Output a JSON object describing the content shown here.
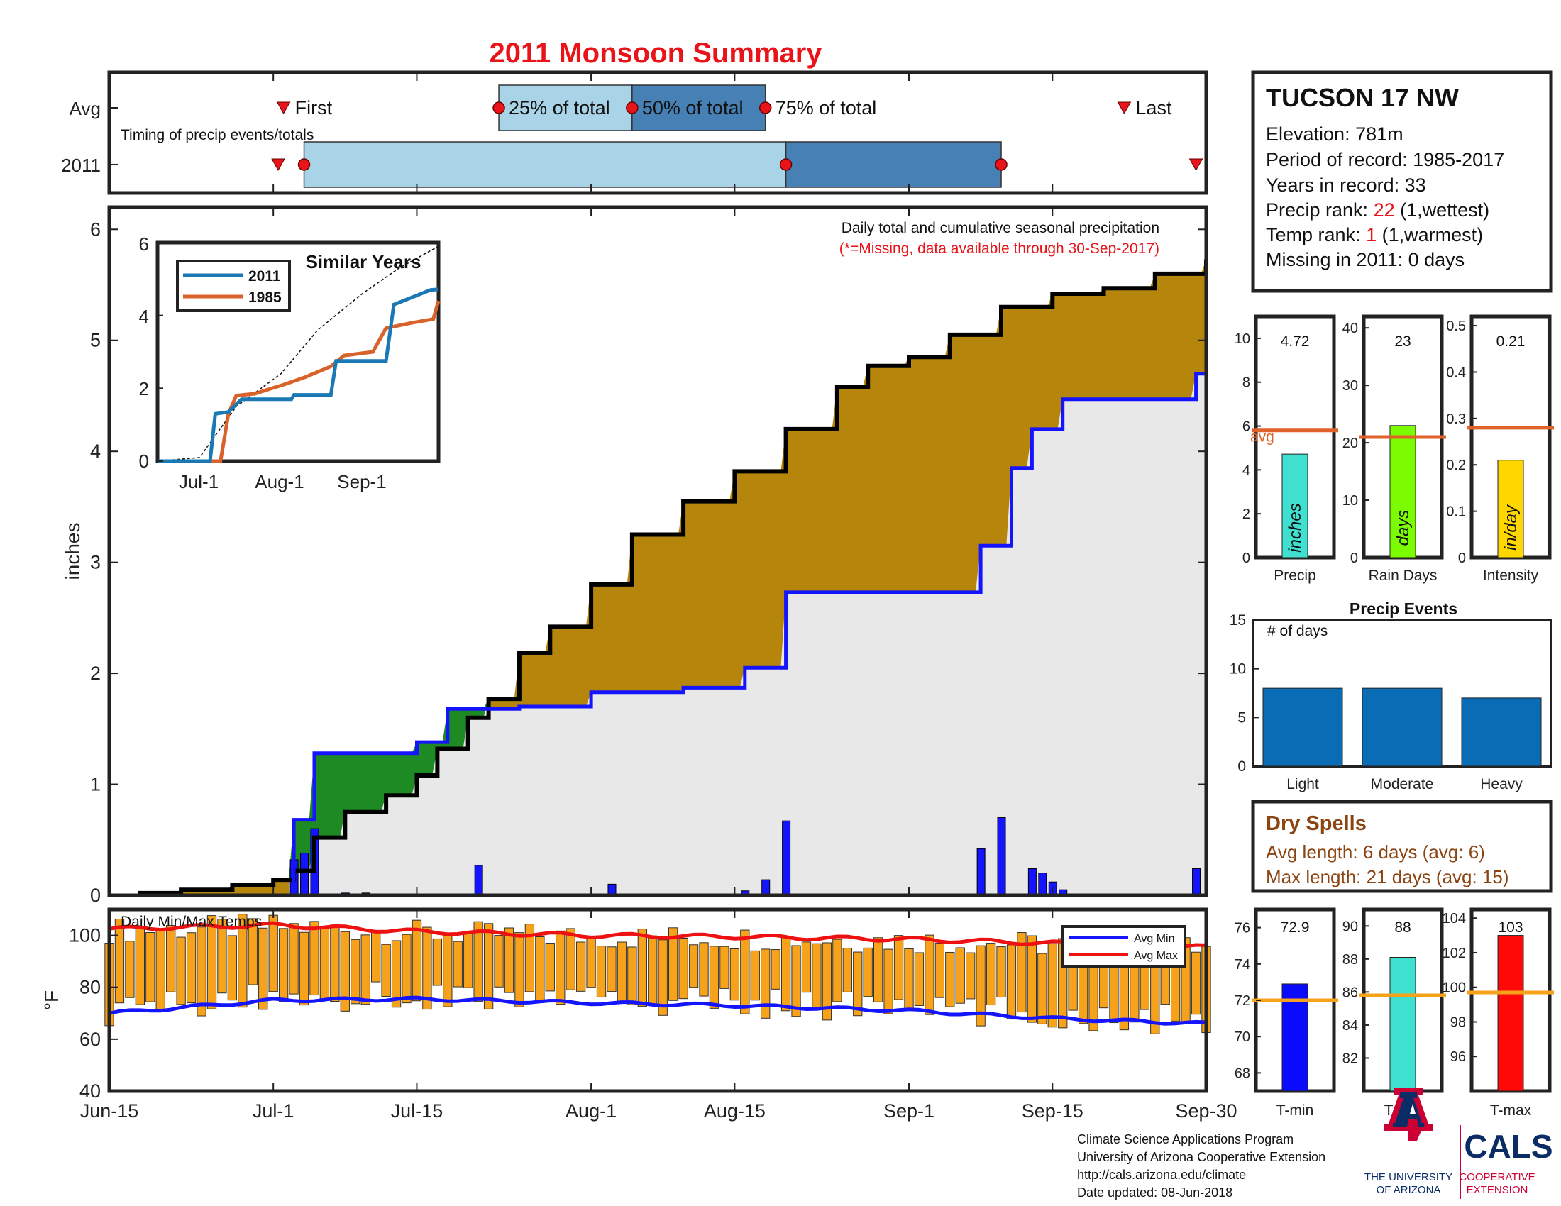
{
  "title": "2011 Monsoon Summary",
  "colors": {
    "title": "#e8141a",
    "light_blue": "#a9d3e6",
    "mid_blue": "#4680b5",
    "cum_2011": "#000000",
    "cum_avg": "#1414ff",
    "above_fill": "#b5860b",
    "below_fill": "#1e8a24",
    "base_fill": "#e8e8e8",
    "daily_bar": "#1414ff",
    "temp_bar": "#f7a21b",
    "avg_min": "#1414ff",
    "avg_max": "#ee1111",
    "similar_2011": "#1a79b5",
    "similar_1985": "#d9622b",
    "precip_bar": "#40e0d0",
    "raindays_bar": "#7cfc00",
    "intensity_bar": "#ffd700",
    "events_bar": "#0a6cb5",
    "avg_line": "#e0622a",
    "temp_avg_line": "#f7a21b",
    "tmin_bar": "#0a0aff",
    "tavg_bar": "#40e0d0",
    "tmax_bar": "#ff0808",
    "dry_spells": "#8b4513",
    "red_text": "#e8141a",
    "ua_blue": "#0c2c66",
    "ua_red": "#cc0033"
  },
  "timing": {
    "row_labels": [
      "Avg",
      "2011"
    ],
    "note": "Timing of precip events/totals",
    "avg_labels": {
      "first": "First",
      "q25": "25% of total",
      "q50": "50% of total",
      "q75": "75% of total",
      "last": "Last"
    }
  },
  "station": {
    "name": "TUCSON 17 NW",
    "elevation": "Elevation: 781m",
    "period": "Period of record: 1985-2017",
    "years": "Years in record: 33",
    "precip_rank_label": "Precip rank: ",
    "precip_rank_value": "22",
    "precip_rank_suffix": " (1,wettest)",
    "temp_rank_label": "Temp rank: ",
    "temp_rank_value": "1",
    "temp_rank_suffix": " (1,warmest)",
    "missing": "Missing in 2011: 0 days"
  },
  "main_chart": {
    "ylabel": "inches",
    "note_line1": "Daily total and cumulative seasonal precipitation",
    "note_line2": "(*=Missing, data available through 30-Sep-2017)"
  },
  "similar_years": {
    "title": "Similar Years",
    "legend": [
      "2011",
      "1985"
    ],
    "xticks": [
      "Jul-1",
      "Aug-1",
      "Sep-1"
    ],
    "yticks": [
      "0",
      "2",
      "4",
      "6"
    ]
  },
  "temps_chart": {
    "label": "Daily Min/Max Temps",
    "ylabel": "°F",
    "legend": [
      "Avg Min",
      "Avg Max"
    ]
  },
  "x_ticks": [
    "Jun-15",
    "Jul-1",
    "Jul-15",
    "Aug-1",
    "Aug-15",
    "Sep-1",
    "Sep-15",
    "Sep-30"
  ],
  "small_bars": [
    {
      "xlabel": "Precip",
      "value": 4.72,
      "value_text": "4.72",
      "avg": 5.8,
      "unit": "inches",
      "avg_label": "avg",
      "yticks": [
        "0",
        "2",
        "4",
        "6",
        "8",
        "10"
      ]
    },
    {
      "xlabel": "Rain Days",
      "value": 23,
      "value_text": "23",
      "avg": 21,
      "unit": "days",
      "yticks": [
        "0",
        "10",
        "20",
        "30",
        "40"
      ]
    },
    {
      "xlabel": "Intensity",
      "value": 0.21,
      "value_text": "0.21",
      "avg": 0.28,
      "unit": "in/day",
      "yticks": [
        "0",
        "0.1",
        "0.2",
        "0.3",
        "0.4",
        "0.5"
      ]
    }
  ],
  "precip_events": {
    "title": "Precip Events",
    "ylabel": "# of days",
    "categories": [
      "Light",
      "Moderate",
      "Heavy"
    ],
    "values": [
      8,
      8,
      7
    ],
    "yticks": [
      "0",
      "5",
      "10",
      "15"
    ]
  },
  "dry_spells": {
    "title": "Dry Spells",
    "avg_length": "Avg length: 6 days (avg: 6)",
    "max_length": "Max length: 21 days (avg: 15)"
  },
  "temp_bars": [
    {
      "xlabel": "T-min",
      "value": 72.9,
      "value_text": "72.9",
      "avg": 72.0,
      "yticks": [
        "68",
        "70",
        "72",
        "74",
        "76"
      ]
    },
    {
      "xlabel": "T-avg",
      "value": 88.1,
      "value_text": "88",
      "avg": 85.8,
      "yticks": [
        "82",
        "84",
        "86",
        "88",
        "90"
      ]
    },
    {
      "xlabel": "T-max",
      "value": 103.0,
      "value_text": "103",
      "avg": 99.7,
      "yticks": [
        "96",
        "98",
        "100",
        "102",
        "104"
      ]
    }
  ],
  "footer": {
    "lines": [
      "Climate Science Applications Program",
      "University of Arizona Cooperative Extension",
      "http://cals.arizona.edu/climate",
      " Date updated: 08-Jun-2018"
    ],
    "ua_line1": "THE UNIVERSITY",
    "ua_line2": "OF ARIZONA",
    "cals": "CALS",
    "cals_sub1": "COOPERATIVE",
    "cals_sub2": "EXTENSION"
  },
  "chart_data": [
    {
      "type": "bar",
      "name": "Timing of precip events/totals",
      "series": [
        {
          "name": "Avg",
          "values": {
            "first": "Jul-2",
            "q25": "Jul-23",
            "q50": "Aug-5",
            "q75": "Aug-18",
            "last": "Sep-22"
          }
        },
        {
          "name": "2011",
          "values": {
            "first": "Jul-3",
            "q25": "Jul-4",
            "q50": "Aug-20",
            "q75": "Sep-10",
            "last": "Sep-29"
          }
        }
      ]
    },
    {
      "type": "area",
      "title": "Daily total and cumulative seasonal precipitation",
      "ylabel": "inches",
      "ylim": [
        0,
        6.2
      ],
      "x_range": [
        "Jun-15",
        "Sep-30"
      ],
      "series": [
        {
          "name": "2011 cumulative",
          "x": [
            "Jun-18",
            "Jun-22",
            "Jun-27",
            "Jul-1",
            "Jul-3",
            "Jul-5",
            "Jul-8",
            "Jul-12",
            "Jul-15",
            "Jul-17",
            "Jul-20",
            "Jul-22",
            "Jul-25",
            "Jul-28",
            "Aug-1",
            "Aug-5",
            "Aug-10",
            "Aug-15",
            "Aug-20",
            "Aug-25",
            "Aug-28",
            "Sep-1",
            "Sep-5",
            "Sep-10",
            "Sep-15",
            "Sep-20",
            "Sep-25",
            "Sep-30"
          ],
          "values": [
            0.02,
            0.05,
            0.09,
            0.14,
            0.22,
            0.52,
            0.75,
            0.9,
            1.08,
            1.32,
            1.6,
            1.77,
            2.18,
            2.42,
            2.8,
            3.25,
            3.55,
            3.82,
            4.2,
            4.58,
            4.77,
            4.85,
            5.05,
            5.3,
            5.42,
            5.47,
            5.6,
            5.73
          ]
        },
        {
          "name": "Average cumulative",
          "x": [
            "Jul-1",
            "Jul-3",
            "Jul-5",
            "Jul-15",
            "Jul-18",
            "Jul-25",
            "Aug-1",
            "Aug-10",
            "Aug-16",
            "Aug-20",
            "Sep-8",
            "Sep-11",
            "Sep-13",
            "Sep-16",
            "Sep-25",
            "Sep-29",
            "Sep-30"
          ],
          "values": [
            0.0,
            0.68,
            1.28,
            1.38,
            1.68,
            1.7,
            1.83,
            1.87,
            2.05,
            2.73,
            3.15,
            3.85,
            4.2,
            4.47,
            4.47,
            4.7,
            4.7
          ]
        },
        {
          "name": "Daily precip",
          "x": [
            "Jul-3",
            "Jul-4",
            "Jul-5",
            "Jul-8",
            "Jul-10",
            "Jul-21",
            "Aug-3",
            "Aug-16",
            "Aug-18",
            "Aug-20",
            "Sep-8",
            "Sep-10",
            "Sep-13",
            "Sep-14",
            "Sep-15",
            "Sep-16",
            "Sep-29"
          ],
          "values": [
            0.32,
            0.38,
            0.6,
            0.02,
            0.02,
            0.27,
            0.1,
            0.04,
            0.14,
            0.67,
            0.42,
            0.7,
            0.24,
            0.2,
            0.12,
            0.05,
            0.24
          ]
        }
      ]
    },
    {
      "type": "line",
      "title": "Similar Years",
      "x_range": [
        "Jun-15",
        "Sep-30"
      ],
      "ylim": [
        0,
        6
      ],
      "series": [
        {
          "name": "2011",
          "x": [
            "Jun-15",
            "Jul-5",
            "Jul-7",
            "Jul-12",
            "Jul-17",
            "Aug-5",
            "Aug-6",
            "Aug-20",
            "Aug-22",
            "Sep-10",
            "Sep-13",
            "Sep-27",
            "Sep-30"
          ],
          "values": [
            0,
            0,
            1.3,
            1.35,
            1.7,
            1.7,
            1.82,
            1.82,
            2.75,
            2.75,
            4.3,
            4.7,
            4.72
          ]
        },
        {
          "name": "1985",
          "x": [
            "Jun-15",
            "Jul-9",
            "Jul-12",
            "Jul-15",
            "Jul-22",
            "Aug-2",
            "Aug-10",
            "Aug-20",
            "Aug-25",
            "Sep-5",
            "Sep-10",
            "Sep-20",
            "Sep-28",
            "Sep-30"
          ],
          "values": [
            0,
            0,
            1.3,
            1.8,
            1.85,
            2.1,
            2.3,
            2.6,
            2.9,
            3.0,
            3.65,
            3.8,
            3.9,
            4.4
          ]
        },
        {
          "name": "Average",
          "x": [
            "Jun-15",
            "Jul-1",
            "Jul-15",
            "Aug-1",
            "Aug-15",
            "Sep-1",
            "Sep-15",
            "Sep-30"
          ],
          "values": [
            0,
            0.1,
            1.5,
            2.4,
            3.6,
            4.6,
            5.3,
            5.9
          ]
        }
      ]
    },
    {
      "type": "bar",
      "title": "Daily Min/Max Temps",
      "ylabel": "°F",
      "ylim": [
        40,
        110
      ],
      "x_range": [
        "Jun-15",
        "Sep-30"
      ],
      "series": [
        {
          "name": "Avg Max",
          "x": [
            "Jun-15",
            "Jul-1",
            "Jul-15",
            "Aug-1",
            "Aug-15",
            "Sep-1",
            "Sep-15",
            "Sep-30"
          ],
          "values": [
            102.5,
            104,
            101.5,
            100,
            99.5,
            98.5,
            97,
            95.5
          ]
        },
        {
          "name": "Avg Min",
          "x": [
            "Jun-15",
            "Jul-1",
            "Jul-15",
            "Aug-1",
            "Aug-15",
            "Sep-1",
            "Sep-15",
            "Sep-30"
          ],
          "values": [
            70,
            75,
            75.5,
            74,
            73,
            71,
            68,
            66
          ]
        }
      ]
    },
    {
      "type": "bar",
      "categories": [
        "Precip"
      ],
      "values": [
        4.72
      ],
      "ylim": [
        0,
        11
      ],
      "avg": 5.8
    },
    {
      "type": "bar",
      "categories": [
        "Rain Days"
      ],
      "values": [
        23
      ],
      "ylim": [
        0,
        42
      ],
      "avg": 21
    },
    {
      "type": "bar",
      "categories": [
        "Intensity"
      ],
      "values": [
        0.21
      ],
      "ylim": [
        0,
        0.52
      ],
      "avg": 0.28
    },
    {
      "type": "bar",
      "title": "Precip Events",
      "ylabel": "# of days",
      "categories": [
        "Light",
        "Moderate",
        "Heavy"
      ],
      "values": [
        8,
        8,
        7
      ],
      "ylim": [
        0,
        15
      ]
    },
    {
      "type": "bar",
      "categories": [
        "T-min"
      ],
      "values": [
        72.9
      ],
      "ylim": [
        67,
        77
      ],
      "avg": 72.0
    },
    {
      "type": "bar",
      "categories": [
        "T-avg"
      ],
      "values": [
        88.1
      ],
      "ylim": [
        80,
        91
      ],
      "avg": 85.8
    },
    {
      "type": "bar",
      "categories": [
        "T-max"
      ],
      "values": [
        103.0
      ],
      "ylim": [
        94,
        104.5
      ],
      "avg": 99.7
    }
  ]
}
